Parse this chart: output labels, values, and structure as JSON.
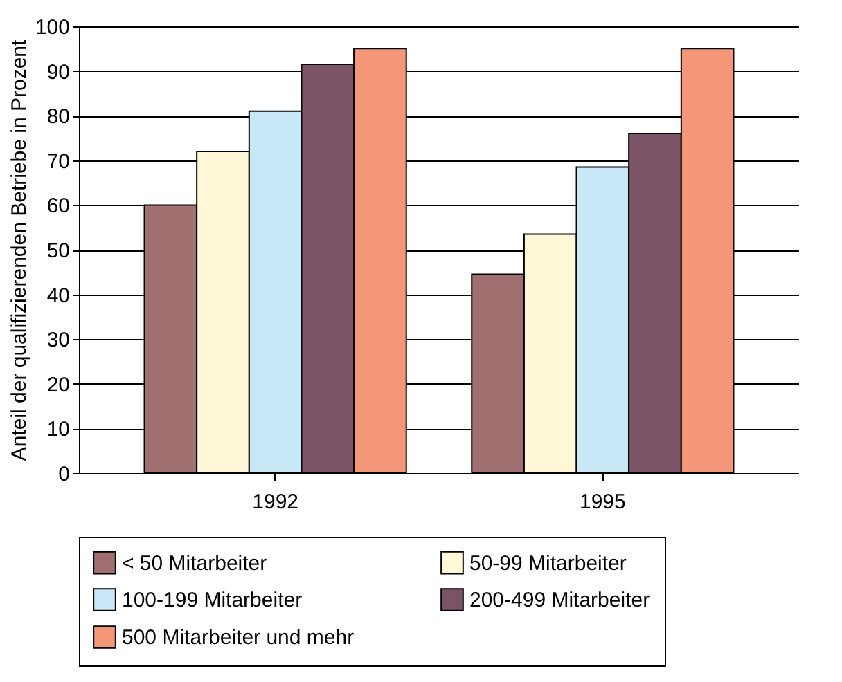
{
  "chart_data": {
    "type": "bar",
    "ylabel": "Anteil der qualifizierenden Betriebe in Prozent",
    "categories": [
      "1992",
      "1995"
    ],
    "series": [
      {
        "name": "< 50 Mitarbeiter",
        "color": "#a07070",
        "values": [
          60,
          44.5
        ]
      },
      {
        "name": "50-99 Mitarbeiter",
        "color": "#fff8d8",
        "values": [
          72,
          53.5
        ]
      },
      {
        "name": "100-199 Mitarbeiter",
        "color": "#c8e8f8",
        "values": [
          81,
          68.5
        ]
      },
      {
        "name": "200-499 Mitarbeiter",
        "color": "#7c5468",
        "values": [
          91.5,
          76
        ]
      },
      {
        "name": "500 Mitarbeiter und mehr",
        "color": "#f49678",
        "values": [
          95,
          95
        ]
      }
    ],
    "ylim": [
      0,
      100
    ],
    "yticks": [
      0,
      10,
      20,
      30,
      40,
      50,
      60,
      70,
      80,
      90,
      100
    ],
    "grid": "y",
    "legend": "bottom"
  }
}
